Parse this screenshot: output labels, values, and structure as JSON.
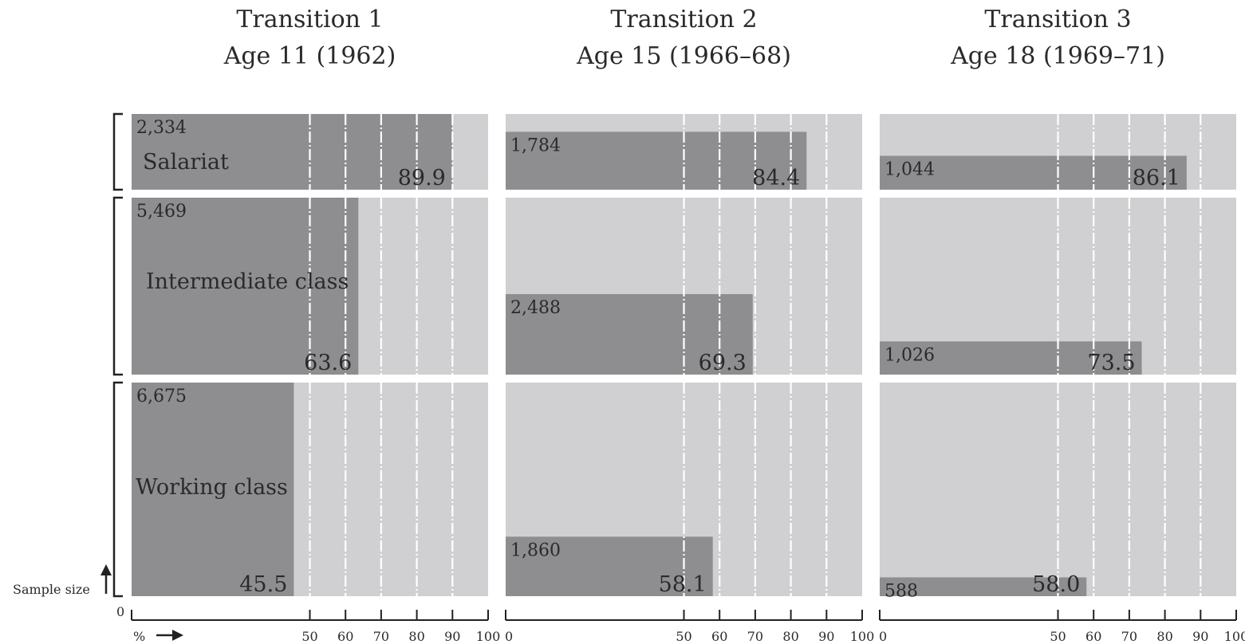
{
  "chart_data": {
    "type": "bar",
    "panels": [
      {
        "title": "Transition 1",
        "subtitle": "Age 11 (1962)"
      },
      {
        "title": "Transition 2",
        "subtitle": "Age 15 (1966–68)"
      },
      {
        "title": "Transition 3",
        "subtitle": "Age 18 (1969–71)"
      }
    ],
    "classes": [
      "Salariat",
      "Intermediate class",
      "Working class"
    ],
    "series": [
      {
        "panel": 0,
        "class": "Salariat",
        "sample_size": 2334,
        "sample_size_label": "2,334",
        "percent": 89.9,
        "percent_label": "89.9"
      },
      {
        "panel": 0,
        "class": "Intermediate class",
        "sample_size": 5469,
        "sample_size_label": "5,469",
        "percent": 63.6,
        "percent_label": "63.6"
      },
      {
        "panel": 0,
        "class": "Working class",
        "sample_size": 6675,
        "sample_size_label": "6,675",
        "percent": 45.5,
        "percent_label": "45.5"
      },
      {
        "panel": 1,
        "class": "Salariat",
        "sample_size": 1784,
        "sample_size_label": "1,784",
        "percent": 84.4,
        "percent_label": "84.4"
      },
      {
        "panel": 1,
        "class": "Intermediate class",
        "sample_size": 2488,
        "sample_size_label": "2,488",
        "percent": 69.3,
        "percent_label": "69.3"
      },
      {
        "panel": 1,
        "class": "Working class",
        "sample_size": 1860,
        "sample_size_label": "1,860",
        "percent": 58.1,
        "percent_label": "58.1"
      },
      {
        "panel": 2,
        "class": "Salariat",
        "sample_size": 1044,
        "sample_size_label": "1,044",
        "percent": 86.1,
        "percent_label": "86.1"
      },
      {
        "panel": 2,
        "class": "Intermediate class",
        "sample_size": 1026,
        "sample_size_label": "1,026",
        "percent": 73.5,
        "percent_label": "73.5"
      },
      {
        "panel": 2,
        "class": "Working class",
        "sample_size": 588,
        "sample_size_label": "588",
        "percent": 58.0,
        "percent_label": "58.0"
      }
    ],
    "x_ticks": [
      0,
      50,
      60,
      70,
      80,
      90,
      100
    ],
    "x_tick_labels_panel1": [
      "50",
      "60",
      "70",
      "80",
      "90",
      "100"
    ],
    "x_tick_labels_other": [
      "0",
      "50",
      "60",
      "70",
      "80",
      "90",
      "100"
    ],
    "x_unit_label": "%",
    "y_origin_label": "0",
    "y_axis_label": "Sample size",
    "xlim": [
      0,
      100
    ],
    "grid_lines": [
      50,
      60,
      70,
      80,
      90
    ],
    "colors": {
      "background": "#d0d0d2",
      "bar": "#8e8e91",
      "grid": "#ffffff",
      "text": "#2a2a2a"
    }
  }
}
